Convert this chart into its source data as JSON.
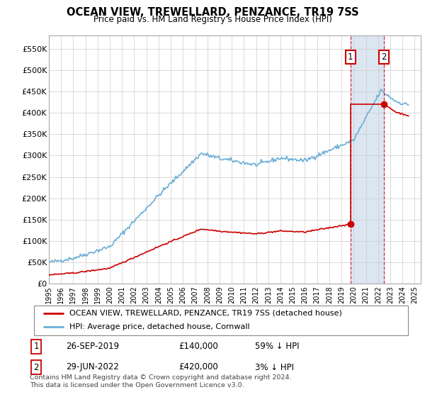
{
  "title": "OCEAN VIEW, TREWELLARD, PENZANCE, TR19 7SS",
  "subtitle": "Price paid vs. HM Land Registry's House Price Index (HPI)",
  "ylabel_ticks": [
    "£0",
    "£50K",
    "£100K",
    "£150K",
    "£200K",
    "£250K",
    "£300K",
    "£350K",
    "£400K",
    "£450K",
    "£500K",
    "£550K"
  ],
  "ylabel_values": [
    0,
    50000,
    100000,
    150000,
    200000,
    250000,
    300000,
    350000,
    400000,
    450000,
    500000,
    550000
  ],
  "ylim": [
    0,
    580000
  ],
  "xlim_start": 1995.0,
  "xlim_end": 2025.5,
  "hpi_color": "#6baed6",
  "price_color": "#cc0000",
  "transaction1_date": 2019.74,
  "transaction1_value": 140000,
  "transaction2_date": 2022.49,
  "transaction2_value": 420000,
  "legend_label1": "OCEAN VIEW, TREWELLARD, PENZANCE, TR19 7SS (detached house)",
  "legend_label2": "HPI: Average price, detached house, Cornwall",
  "table_rows": [
    {
      "num": "1",
      "date": "26-SEP-2019",
      "price": "£140,000",
      "hpi": "59% ↓ HPI"
    },
    {
      "num": "2",
      "date": "29-JUN-2022",
      "price": "£420,000",
      "hpi": "3% ↓ HPI"
    }
  ],
  "footnote": "Contains HM Land Registry data © Crown copyright and database right 2024.\nThis data is licensed under the Open Government Licence v3.0.",
  "grid_color": "#cccccc",
  "shade_color": "#dce6f1"
}
